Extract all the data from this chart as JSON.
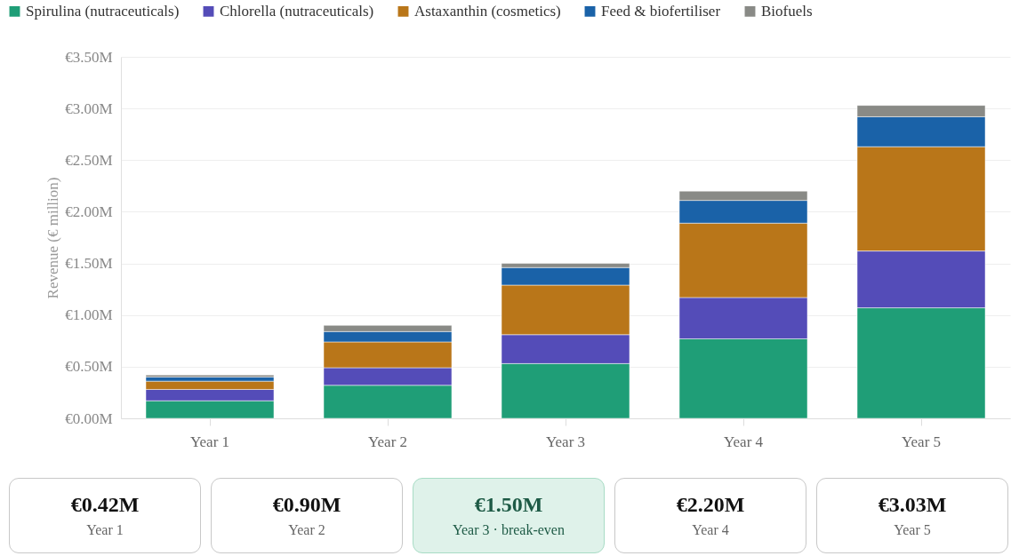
{
  "chart_data": {
    "type": "bar",
    "stacked": true,
    "ylabel": "Revenue (€ million)",
    "categories": [
      "Year 1",
      "Year 2",
      "Year 3",
      "Year 4",
      "Year 5"
    ],
    "series": [
      {
        "name": "Spirulina (nutraceuticals)",
        "color": "#1f9e77",
        "values": [
          0.17,
          0.32,
          0.53,
          0.77,
          1.07
        ]
      },
      {
        "name": "Chlorella (nutraceuticals)",
        "color": "#544cb8",
        "values": [
          0.11,
          0.17,
          0.28,
          0.4,
          0.55
        ]
      },
      {
        "name": "Astaxanthin (cosmetics)",
        "color": "#b97619",
        "values": [
          0.08,
          0.25,
          0.48,
          0.72,
          1.01
        ]
      },
      {
        "name": "Feed & biofertiliser",
        "color": "#1a62a8",
        "values": [
          0.04,
          0.1,
          0.17,
          0.22,
          0.29
        ]
      },
      {
        "name": "Biofuels",
        "color": "#898a86",
        "values": [
          0.02,
          0.06,
          0.04,
          0.09,
          0.11
        ]
      }
    ],
    "ylim": [
      0,
      3.5
    ],
    "yticks": [
      {
        "value": 0,
        "label": "€0.00M"
      },
      {
        "value": 0.5,
        "label": "€0.50M"
      },
      {
        "value": 1,
        "label": "€1.00M"
      },
      {
        "value": 1.5,
        "label": "€1.50M"
      },
      {
        "value": 2,
        "label": "€2.00M"
      },
      {
        "value": 2.5,
        "label": "€2.50M"
      },
      {
        "value": 3,
        "label": "€3.00M"
      },
      {
        "value": 3.5,
        "label": "€3.50M"
      }
    ],
    "annotations": [
      "€0.42M",
      "Year 1",
      "€0.90M",
      "Year 2",
      "€1.50M",
      "Year 3 · break-even",
      "€2.20M",
      "Year 4",
      "€3.03M",
      "Year 5"
    ],
    "grid": "y",
    "legend": "top"
  }
}
